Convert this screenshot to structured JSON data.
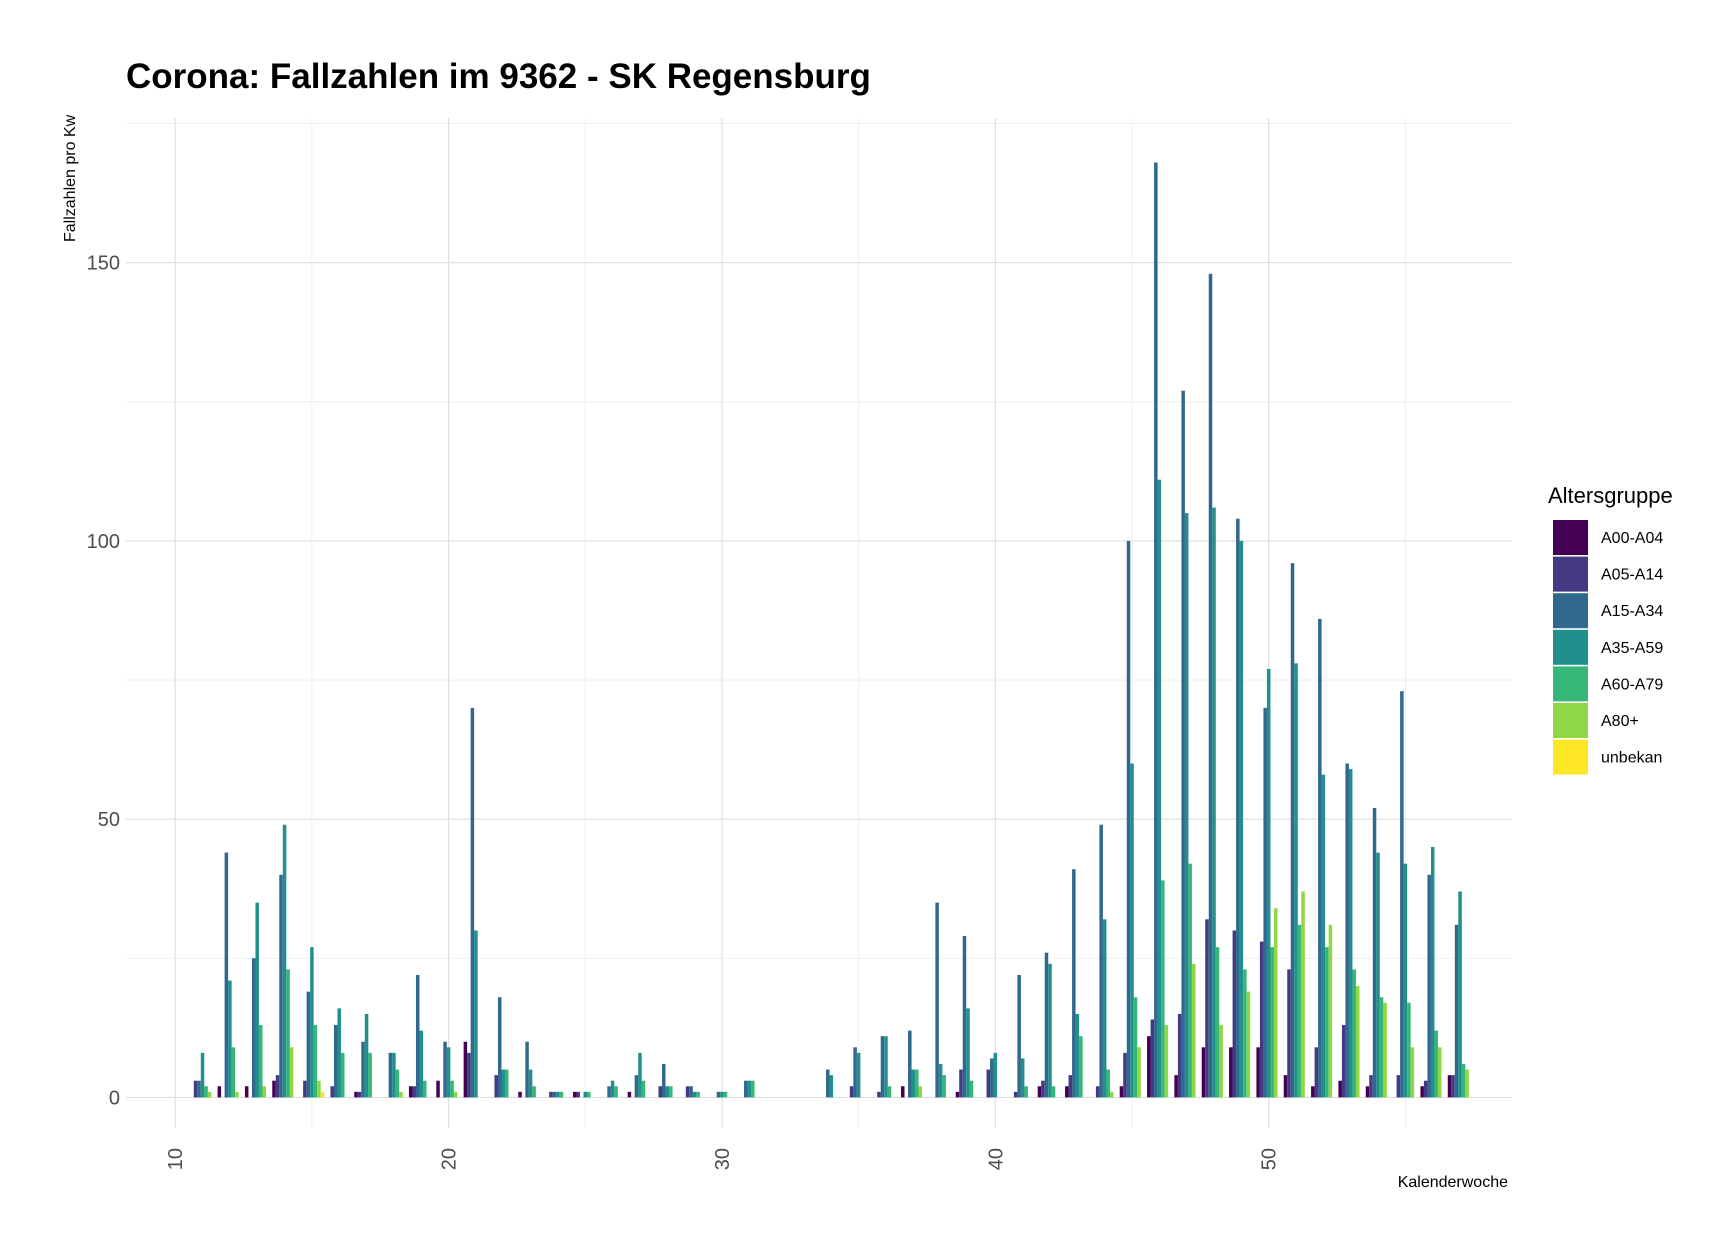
{
  "chart_data": {
    "type": "bar",
    "title": "Corona: Fallzahlen im 9362 - SK Regensburg",
    "xlabel": "Kalenderwoche",
    "ylabel": "Fallzahlen pro Kw",
    "xlim": [
      8.2,
      58.9
    ],
    "ylim": [
      -5.5,
      176
    ],
    "x_ticks": [
      10,
      20,
      30,
      40,
      50
    ],
    "y_ticks": [
      0,
      50,
      100,
      150
    ],
    "grid": true,
    "legend": {
      "title": "Altersgruppe",
      "position": "right"
    },
    "series": [
      {
        "name": "A00-A04",
        "color": "#440154",
        "values": [
          0,
          2,
          2,
          3,
          0,
          0,
          1,
          0,
          2,
          3,
          10,
          0,
          1,
          0,
          1,
          0,
          1,
          0,
          0,
          0,
          0,
          0,
          0,
          0,
          0,
          0,
          2,
          0,
          1,
          0,
          0,
          2,
          2,
          0,
          2,
          11,
          4,
          9,
          9,
          9,
          4,
          2,
          3,
          2,
          0,
          2,
          4
        ]
      },
      {
        "name": "A05-A14",
        "color": "#443A83",
        "values": [
          3,
          0,
          0,
          4,
          3,
          2,
          1,
          0,
          2,
          0,
          8,
          4,
          0,
          1,
          1,
          0,
          0,
          2,
          2,
          0,
          0,
          0,
          0,
          0,
          2,
          1,
          0,
          0,
          5,
          5,
          1,
          3,
          4,
          2,
          8,
          14,
          15,
          32,
          30,
          28,
          23,
          9,
          13,
          4,
          4,
          3,
          4
        ]
      },
      {
        "name": "A15-A34",
        "color": "#31688E",
        "values": [
          3,
          44,
          25,
          40,
          19,
          13,
          10,
          8,
          22,
          10,
          70,
          18,
          10,
          1,
          0,
          2,
          4,
          6,
          2,
          1,
          3,
          0,
          0,
          5,
          9,
          11,
          12,
          35,
          29,
          7,
          22,
          26,
          41,
          49,
          100,
          168,
          127,
          148,
          104,
          70,
          96,
          86,
          60,
          52,
          73,
          40,
          31
        ]
      },
      {
        "name": "A35-A59",
        "color": "#21908D",
        "values": [
          8,
          21,
          35,
          49,
          27,
          16,
          15,
          8,
          12,
          9,
          30,
          5,
          5,
          1,
          1,
          3,
          8,
          2,
          1,
          1,
          3,
          0,
          0,
          4,
          8,
          11,
          5,
          6,
          16,
          8,
          7,
          24,
          15,
          32,
          60,
          111,
          105,
          106,
          100,
          77,
          78,
          58,
          59,
          44,
          42,
          45,
          37
        ]
      },
      {
        "name": "A60-A79",
        "color": "#35B779",
        "values": [
          2,
          9,
          13,
          23,
          13,
          8,
          8,
          5,
          3,
          3,
          0,
          5,
          2,
          1,
          1,
          2,
          3,
          2,
          1,
          1,
          3,
          0,
          0,
          0,
          0,
          2,
          5,
          4,
          3,
          0,
          2,
          2,
          11,
          5,
          18,
          39,
          42,
          27,
          23,
          27,
          31,
          27,
          23,
          18,
          17,
          12,
          6
        ]
      },
      {
        "name": "A80+",
        "color": "#8FD744",
        "values": [
          1,
          1,
          2,
          9,
          3,
          0,
          0,
          1,
          0,
          1,
          0,
          0,
          0,
          0,
          0,
          0,
          0,
          0,
          0,
          0,
          0,
          0,
          0,
          0,
          0,
          0,
          2,
          0,
          0,
          0,
          0,
          0,
          0,
          1,
          9,
          13,
          24,
          13,
          19,
          34,
          37,
          31,
          20,
          17,
          9,
          9,
          5
        ]
      },
      {
        "name": "unbekan",
        "color": "#FDE725",
        "values": [
          0,
          0,
          0,
          0,
          1,
          0,
          0,
          0,
          0,
          0,
          0,
          0,
          0,
          0,
          0,
          0,
          0,
          0,
          0,
          0,
          0,
          0,
          0,
          0,
          0,
          0,
          0,
          0,
          0,
          0,
          0,
          0,
          0,
          0,
          0,
          0,
          0,
          0,
          0,
          0,
          0,
          0,
          0,
          0,
          0,
          0,
          0
        ]
      }
    ],
    "x": [
      11,
      12,
      13,
      14,
      15,
      16,
      17,
      18,
      19,
      20,
      21,
      22,
      23,
      24,
      25,
      26,
      27,
      28,
      29,
      30,
      31,
      32,
      33,
      34,
      35,
      36,
      37,
      38,
      39,
      40,
      41,
      42,
      43,
      44,
      45,
      46,
      47,
      48,
      49,
      50,
      51,
      52,
      53,
      54,
      55,
      56,
      57
    ]
  }
}
